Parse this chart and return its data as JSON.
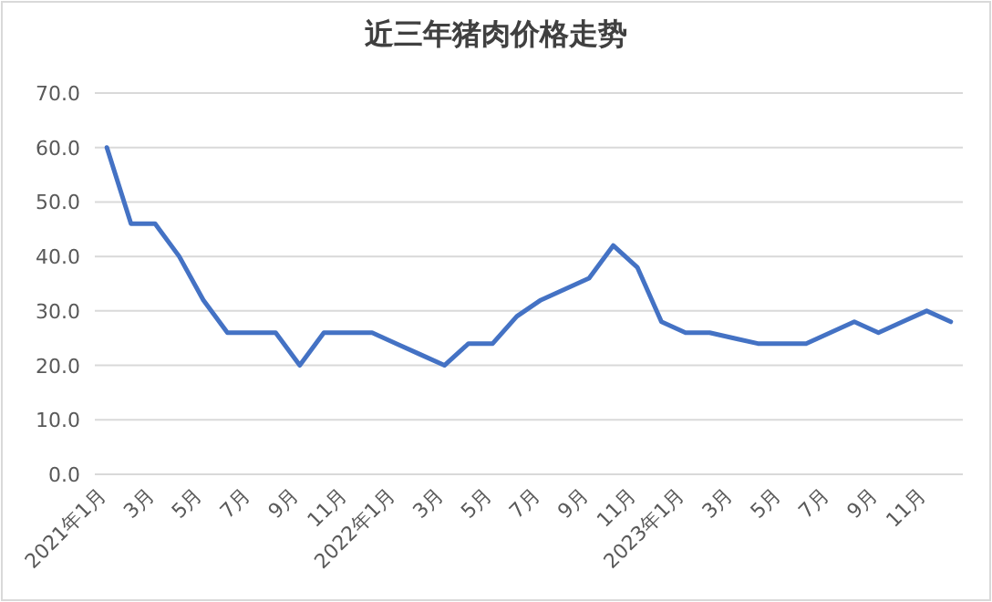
{
  "chart_data": {
    "type": "line",
    "title": "近三年猪肉价格走势",
    "categories": [
      "2021年1月",
      null,
      "3月",
      null,
      "5月",
      null,
      "7月",
      null,
      "9月",
      null,
      "11月",
      null,
      "2022年1月",
      null,
      "3月",
      null,
      "5月",
      null,
      "7月",
      null,
      "9月",
      null,
      "11月",
      null,
      "2023年1月",
      null,
      "3月",
      null,
      "5月",
      null,
      "7月",
      null,
      "9月",
      null,
      "11月",
      null
    ],
    "series": [
      {
        "color": "#4472c4",
        "values": [
          60,
          46,
          46,
          40,
          32,
          26,
          26,
          26,
          20,
          26,
          26,
          26,
          24,
          22,
          20,
          24,
          24,
          29,
          32,
          34,
          36,
          42,
          38,
          28,
          26,
          26,
          25,
          24,
          24,
          24,
          26,
          28,
          26,
          28,
          30,
          28
        ]
      }
    ],
    "ylim": [
      0,
      70
    ],
    "yticks": [
      {
        "value": 0,
        "label": "0.0"
      },
      {
        "value": 10,
        "label": "10.0"
      },
      {
        "value": 20,
        "label": "20.0"
      },
      {
        "value": 30,
        "label": "30.0"
      },
      {
        "value": 40,
        "label": "40.0"
      },
      {
        "value": 50,
        "label": "50.0"
      },
      {
        "value": 60,
        "label": "60.0"
      },
      {
        "value": 70,
        "label": "70.0"
      }
    ],
    "grid": "y",
    "marker": "none",
    "line_style": "solid"
  }
}
